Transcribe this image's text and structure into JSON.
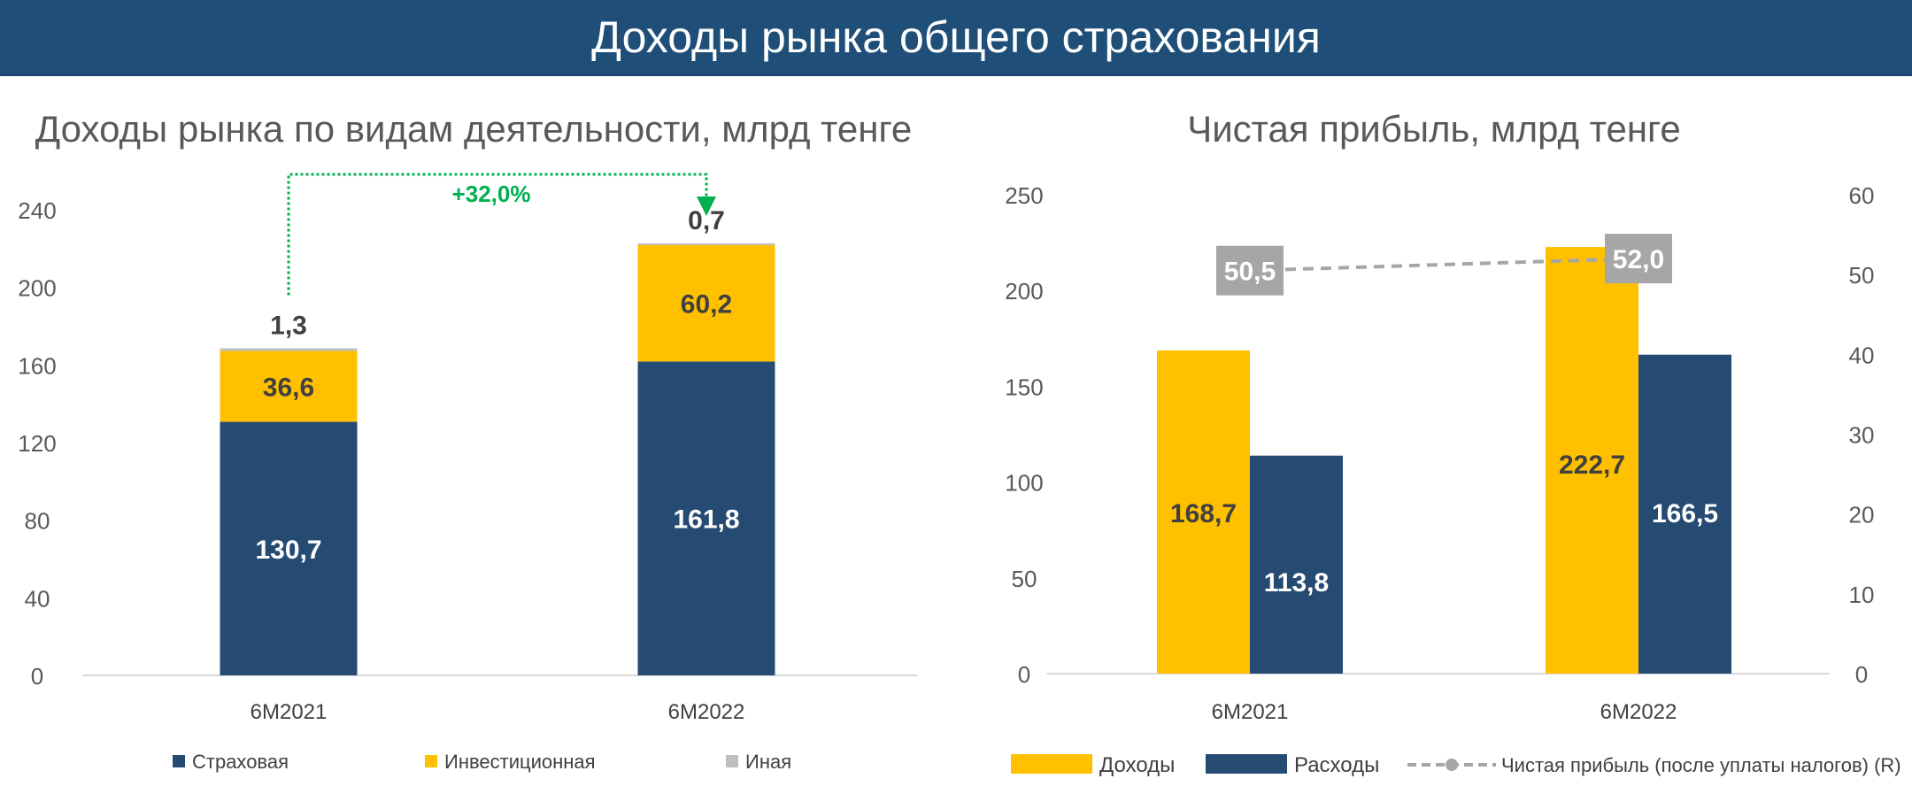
{
  "header": {
    "title": "Доходы рынка общего страхования"
  },
  "colors": {
    "header_bg": "#1f4e79",
    "insurance": "#264b73",
    "investment": "#ffc000",
    "other": "#bfbfbf",
    "growth": "#00b050",
    "line": "#a6a6a6"
  },
  "chart_data": [
    {
      "type": "bar",
      "stacked": true,
      "title": "Доходы рынка по видам деятельности, млрд тенге",
      "categories": [
        "6M2021",
        "6M2022"
      ],
      "series": [
        {
          "name": "Страховая",
          "values": [
            130.7,
            161.8
          ],
          "labels": [
            "130,7",
            "161,8"
          ],
          "color": "#264b73"
        },
        {
          "name": "Инвестиционная",
          "values": [
            36.6,
            60.2
          ],
          "labels": [
            "36,6",
            "60,2"
          ],
          "color": "#ffc000"
        },
        {
          "name": "Иная",
          "values": [
            1.3,
            0.7
          ],
          "labels": [
            "1,3",
            "0,7"
          ],
          "color": "#bfbfbf"
        }
      ],
      "ylim": [
        0,
        240
      ],
      "yticks": [
        "0",
        "40",
        "80",
        "120",
        "160",
        "200",
        "240"
      ],
      "grid": false,
      "legend": "bottom",
      "annotation": "+32,0%"
    },
    {
      "type": "bar+line",
      "title": "Чистая прибыль, млрд тенге",
      "categories": [
        "6M2021",
        "6M2022"
      ],
      "series": [
        {
          "name": "Доходы",
          "values": [
            168.7,
            222.7
          ],
          "labels": [
            "168,7",
            "222,7"
          ],
          "color": "#ffc000",
          "axis": "left"
        },
        {
          "name": "Расходы",
          "values": [
            113.8,
            166.5
          ],
          "labels": [
            "113,8",
            "166,5"
          ],
          "color": "#264b73",
          "axis": "left"
        },
        {
          "name": "Чистая прибыль (после уплаты налогов) (R)",
          "values": [
            50.5,
            52.0
          ],
          "labels": [
            "50,5",
            "52,0"
          ],
          "color": "#a6a6a6",
          "axis": "right",
          "style": "dashed-line"
        }
      ],
      "ylim": [
        0,
        250
      ],
      "yticks": [
        "0",
        "50",
        "100",
        "150",
        "200",
        "250"
      ],
      "y2lim": [
        0,
        60
      ],
      "y2ticks": [
        "0",
        "10",
        "20",
        "30",
        "40",
        "50",
        "60"
      ],
      "grid": false,
      "legend": "bottom"
    }
  ]
}
